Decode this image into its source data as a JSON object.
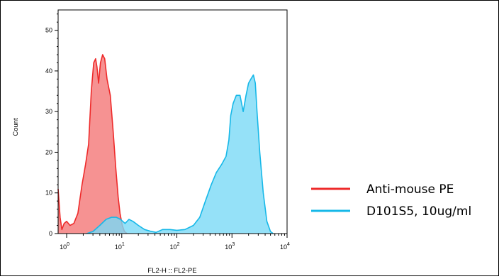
{
  "chart_data": {
    "type": "area",
    "xlabel": "FL2-H :: FL2-PE",
    "ylabel": "Count",
    "xscale": "log",
    "xlim": [
      0.7,
      10000
    ],
    "ylim": [
      0,
      55
    ],
    "x_ticks": [
      {
        "value": 1,
        "base": "10",
        "exp": "0"
      },
      {
        "value": 10,
        "base": "10",
        "exp": "1"
      },
      {
        "value": 100,
        "base": "10",
        "exp": "2"
      },
      {
        "value": 1000,
        "base": "10",
        "exp": "3"
      },
      {
        "value": 10000,
        "base": "10",
        "exp": "4"
      }
    ],
    "y_ticks": [
      0,
      10,
      20,
      30,
      40,
      50
    ],
    "grid": false,
    "legend_position": "right",
    "series": [
      {
        "name": "Anti-mouse PE",
        "color": "#ee2a2a",
        "fill": "#f47f7f",
        "points": [
          [
            0.7,
            11
          ],
          [
            0.76,
            4
          ],
          [
            0.82,
            1
          ],
          [
            0.9,
            2.5
          ],
          [
            1.0,
            3
          ],
          [
            1.15,
            2
          ],
          [
            1.35,
            2.5
          ],
          [
            1.6,
            5
          ],
          [
            1.9,
            12
          ],
          [
            2.2,
            17
          ],
          [
            2.5,
            22
          ],
          [
            2.8,
            35
          ],
          [
            3.1,
            42
          ],
          [
            3.35,
            43
          ],
          [
            3.55,
            41
          ],
          [
            3.8,
            37
          ],
          [
            4.1,
            42
          ],
          [
            4.5,
            44
          ],
          [
            4.9,
            43
          ],
          [
            5.4,
            38
          ],
          [
            6.2,
            34
          ],
          [
            7.0,
            25
          ],
          [
            7.8,
            16
          ],
          [
            8.6,
            9
          ],
          [
            9.3,
            5
          ],
          [
            10.2,
            2
          ],
          [
            11.2,
            0.5
          ],
          [
            12.5,
            0
          ]
        ]
      },
      {
        "name": "D101S5, 10ug/ml",
        "color": "#16b8e8",
        "fill": "#7ad9f6",
        "points": [
          [
            2.3,
            0
          ],
          [
            3.0,
            0.5
          ],
          [
            4.0,
            2
          ],
          [
            5.2,
            3.5
          ],
          [
            6.5,
            4
          ],
          [
            8.0,
            4
          ],
          [
            9.5,
            3.5
          ],
          [
            11.5,
            2.5
          ],
          [
            13.5,
            3.5
          ],
          [
            16,
            3
          ],
          [
            20,
            2
          ],
          [
            26,
            1
          ],
          [
            33,
            0.6
          ],
          [
            42,
            0.3
          ],
          [
            55,
            1
          ],
          [
            75,
            1
          ],
          [
            100,
            0.8
          ],
          [
            140,
            1
          ],
          [
            200,
            2
          ],
          [
            260,
            4
          ],
          [
            330,
            8
          ],
          [
            420,
            12
          ],
          [
            520,
            15
          ],
          [
            650,
            17
          ],
          [
            780,
            19
          ],
          [
            880,
            23
          ],
          [
            950,
            29
          ],
          [
            1050,
            32
          ],
          [
            1200,
            34
          ],
          [
            1400,
            34
          ],
          [
            1600,
            30
          ],
          [
            1800,
            34
          ],
          [
            2000,
            37
          ],
          [
            2200,
            38
          ],
          [
            2450,
            39
          ],
          [
            2650,
            37
          ],
          [
            2850,
            30
          ],
          [
            3200,
            20
          ],
          [
            3700,
            10
          ],
          [
            4300,
            3
          ],
          [
            5000,
            0.5
          ],
          [
            5600,
            0
          ]
        ]
      }
    ]
  }
}
